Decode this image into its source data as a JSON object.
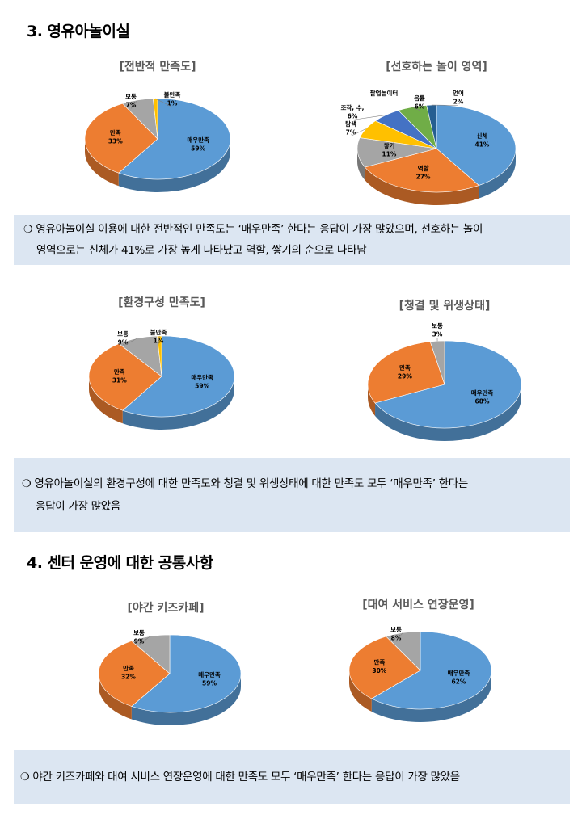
{
  "sections": {
    "s3": "3. 영유아놀이실",
    "s4": "4. 센터 운영에 대한 공통사항"
  },
  "notes": {
    "n1": {
      "bullet": "❍",
      "line1": "영유아놀이실 이용에 대한 전반적인 만족도는 ‘매우만족’ 한다는 응답이 가장 많았으며, 선호하는 놀이",
      "line2": "영역으로는 신체가 41%로 가장 높게 나타났고 역할, 쌓기의 순으로 나타남"
    },
    "n2": {
      "bullet": "❍",
      "line1": "영유아놀이실의 환경구성에 대한 만족도와 청결 및 위생상태에 대한 만족도 모두 ‘매우만족’ 한다는",
      "line2": "응답이 가장 많았음"
    },
    "n3": {
      "bullet": "❍",
      "line1": "야간 키즈카페와 대여 서비스 연장운영에 대한 만족도 모두 ‘매우만족’ 한다는 응답이 가장 많았음"
    }
  },
  "chart_data": [
    {
      "id": "c1",
      "type": "pie",
      "title": "[전반적 만족도]",
      "slices": [
        {
          "label": "매우만족",
          "value": 59,
          "pct": "59%",
          "color": "#5b9bd5"
        },
        {
          "label": "만족",
          "value": 33,
          "pct": "33%",
          "color": "#ed7d31"
        },
        {
          "label": "보통",
          "value": 7,
          "pct": "7%",
          "color": "#a5a5a5"
        },
        {
          "label": "불만족",
          "value": 1,
          "pct": "1%",
          "color": "#ffc000"
        }
      ]
    },
    {
      "id": "c2",
      "type": "pie",
      "title": "[선호하는 놀이 영역]",
      "slices": [
        {
          "label": "신체",
          "value": 41,
          "pct": "41%",
          "color": "#5b9bd5"
        },
        {
          "label": "역할",
          "value": 27,
          "pct": "27%",
          "color": "#ed7d31"
        },
        {
          "label": "쌓기",
          "value": 11,
          "pct": "11%",
          "color": "#a5a5a5"
        },
        {
          "label": "탐색",
          "value": 7,
          "pct": "7%",
          "color": "#ffc000"
        },
        {
          "label": "조작, 수,",
          "value": 6,
          "pct": "6%",
          "color": "#4472c4"
        },
        {
          "label": "음률",
          "value": 6,
          "pct": "6%",
          "color": "#70ad47"
        },
        {
          "label": "언어",
          "value": 2,
          "pct": "2%",
          "color": "#255e91"
        }
      ],
      "extra_labels": [
        "팔업놀이터"
      ]
    },
    {
      "id": "c3",
      "type": "pie",
      "title": "[환경구성 만족도]",
      "slices": [
        {
          "label": "매우만족",
          "value": 59,
          "pct": "59%",
          "color": "#5b9bd5"
        },
        {
          "label": "만족",
          "value": 31,
          "pct": "31%",
          "color": "#ed7d31"
        },
        {
          "label": "보통",
          "value": 9,
          "pct": "9%",
          "color": "#a5a5a5"
        },
        {
          "label": "불만족",
          "value": 1,
          "pct": "1%",
          "color": "#ffc000"
        }
      ]
    },
    {
      "id": "c4",
      "type": "pie",
      "title": "[청결 및 위생상태]",
      "slices": [
        {
          "label": "매우만족",
          "value": 68,
          "pct": "68%",
          "color": "#5b9bd5"
        },
        {
          "label": "만족",
          "value": 29,
          "pct": "29%",
          "color": "#ed7d31"
        },
        {
          "label": "보통",
          "value": 3,
          "pct": "3%",
          "color": "#a5a5a5"
        }
      ]
    },
    {
      "id": "c5",
      "type": "pie",
      "title": "[야간 키즈카페]",
      "slices": [
        {
          "label": "매우만족",
          "value": 59,
          "pct": "59%",
          "color": "#5b9bd5"
        },
        {
          "label": "만족",
          "value": 32,
          "pct": "32%",
          "color": "#ed7d31"
        },
        {
          "label": "보통",
          "value": 9,
          "pct": "9%",
          "color": "#a5a5a5"
        }
      ]
    },
    {
      "id": "c6",
      "type": "pie",
      "title": "[대여 서비스 연장운영]",
      "slices": [
        {
          "label": "매우만족",
          "value": 62,
          "pct": "62%",
          "color": "#5b9bd5"
        },
        {
          "label": "만족",
          "value": 30,
          "pct": "30%",
          "color": "#ed7d31"
        },
        {
          "label": "보통",
          "value": 8,
          "pct": "8%",
          "color": "#a5a5a5"
        }
      ]
    }
  ]
}
